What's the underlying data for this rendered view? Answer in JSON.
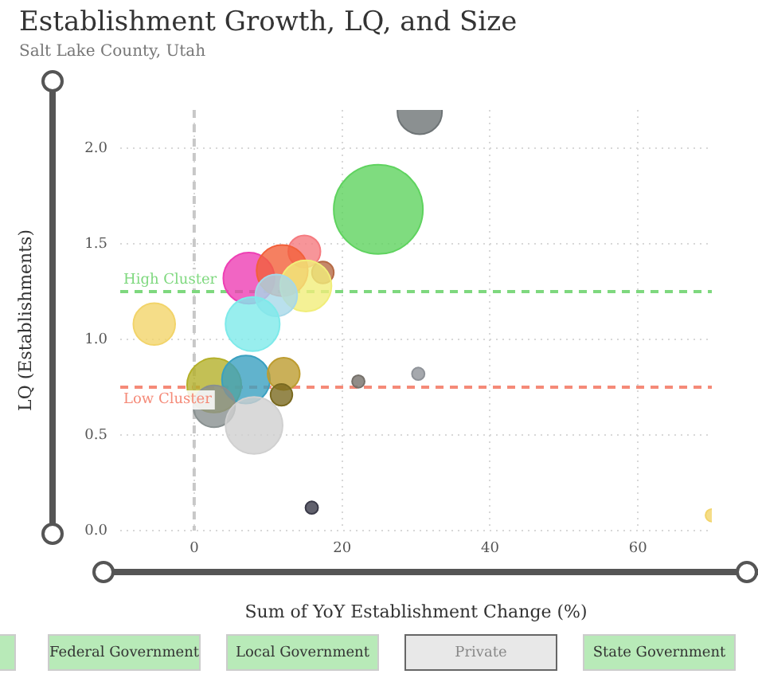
{
  "chart_data": {
    "type": "bubble",
    "title": "Establishment Growth, LQ, and Size",
    "subtitle": "Salt Lake County, Utah",
    "xlabel": "Sum of YoY Establishment Change (%)",
    "ylabel": "LQ (Establishments)",
    "x": [
      30.5,
      24.9,
      14.9,
      7.4,
      11.9,
      17.4,
      15.1,
      11.1,
      7.9,
      -5.4,
      2.7,
      7.0,
      12.1,
      11.8,
      2.7,
      8.1,
      22.2,
      30.3,
      15.9,
      70
    ],
    "values": [
      2.19,
      1.68,
      1.46,
      1.32,
      1.36,
      1.35,
      1.28,
      1.23,
      1.08,
      1.08,
      0.76,
      0.79,
      0.82,
      0.71,
      0.65,
      0.55,
      0.78,
      0.82,
      0.12,
      0.08
    ],
    "sizes": [
      0.25,
      1,
      0.13,
      0.33,
      0.33,
      0.06,
      0.33,
      0.22,
      0.37,
      0.22,
      0.37,
      0.29,
      0.13,
      0.06,
      0.22,
      0.41,
      0.02,
      0.02,
      0.02,
      0.02
    ],
    "colors": [
      "#6e7476",
      "#5fd35f",
      "#f57b80",
      "#ee3fb4",
      "#f2603a",
      "#b66a45",
      "#f1ee7a",
      "#a7d8e8",
      "#7eeaea",
      "#f2d46a",
      "#b4b02a",
      "#3aa0c0",
      "#bd9c30",
      "#7a6a20",
      "#889090",
      "#d0d0d0",
      "#75706a",
      "#8e9298",
      "#3a3a48",
      "#f2d46a"
    ],
    "xlim": [
      -10,
      70
    ],
    "ylim": [
      0,
      2.2
    ],
    "xticks": [
      0,
      20,
      40,
      60
    ],
    "yticks": [
      {
        "value": 0,
        "label": "0.0"
      },
      0.5,
      {
        "value": 1,
        "label": "1.0"
      },
      1.5,
      {
        "value": 2,
        "label": "2.0"
      }
    ],
    "grid": true,
    "legend": false,
    "ref_lines": [
      {
        "axis": "y",
        "value": 1.25,
        "label": "High Cluster",
        "color": "#7ed87e",
        "line_style": "dashed"
      },
      {
        "axis": "y",
        "value": 0.75,
        "label": "Low Cluster",
        "color": "#f58a78",
        "line_style": "dashed"
      },
      {
        "axis": "x",
        "value": 0,
        "label": null,
        "color": "#c8c8c8",
        "line_style": "dashed"
      }
    ],
    "annotations": [
      "Federal Government",
      "Local Government",
      "Private",
      "State Government"
    ]
  }
}
